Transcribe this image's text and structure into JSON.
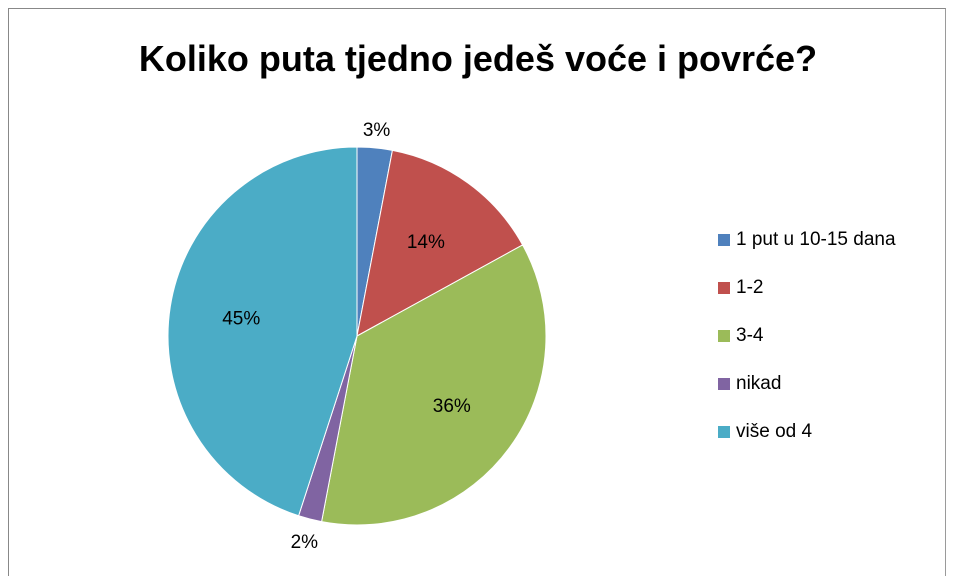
{
  "chart_data": {
    "type": "pie",
    "title": "Koliko puta tjedno jedeš voće i povrće?",
    "categories": [
      "1 put u 10-15 dana",
      "1-2",
      "3-4",
      "nikad",
      "više od 4"
    ],
    "values": [
      3,
      14,
      36,
      2,
      45
    ],
    "data_labels": [
      "3%",
      "14%",
      "36%",
      "2%",
      "45%"
    ],
    "colors": [
      "#4F81BD",
      "#C0504D",
      "#9BBB59",
      "#8064A2",
      "#4BACC6"
    ],
    "legend_position": "right",
    "start_angle": "top, clockwise"
  }
}
